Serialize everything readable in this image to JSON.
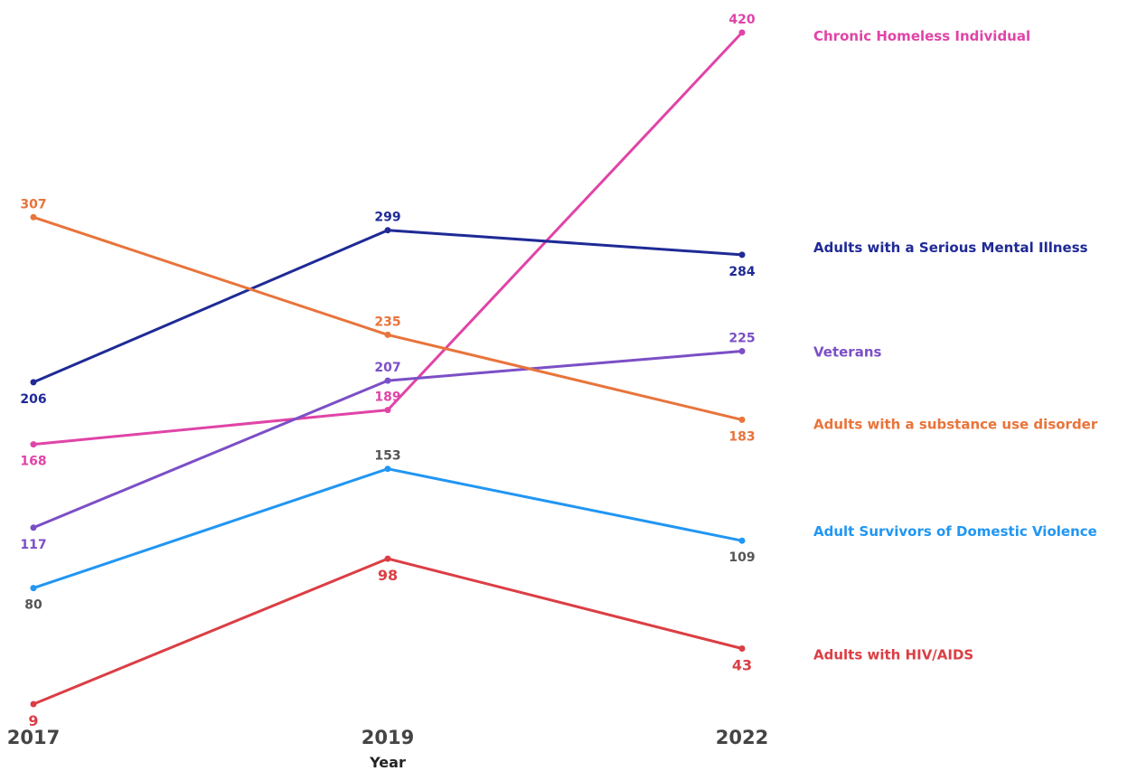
{
  "chart_data": {
    "type": "line",
    "title": "",
    "xlabel": "Year",
    "ylabel": "",
    "x": [
      "2017",
      "2019",
      "2022"
    ],
    "ylim": [
      9,
      420
    ],
    "grid": false,
    "legend": "right",
    "series": [
      {
        "name": "Chronic Homeless Individual",
        "color": "#E044A7",
        "values": [
          168,
          189,
          420
        ]
      },
      {
        "name": "Adults with a Serious Mental Illness",
        "color": "#1F2A96",
        "values": [
          206,
          299,
          284
        ]
      },
      {
        "name": "Veterans",
        "color": "#7B4FC6",
        "values": [
          117,
          207,
          225
        ]
      },
      {
        "name": "Adults with a substance use disorder",
        "color": "#E8743B",
        "values": [
          307,
          235,
          183
        ]
      },
      {
        "name": "Adult Survivors of Domestic Violence",
        "color": "#2196F3",
        "values": [
          80,
          153,
          109
        ]
      },
      {
        "name": "Adults with HIV/AIDS",
        "color": "#DB3E44",
        "values": [
          9,
          98,
          43
        ]
      }
    ]
  }
}
